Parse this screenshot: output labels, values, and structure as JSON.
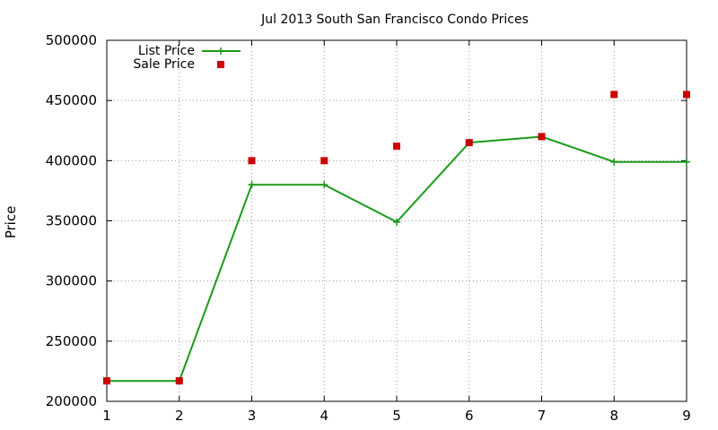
{
  "chart_data": {
    "type": "line",
    "title": "Jul 2013 South San Francisco Condo Prices",
    "xlabel": "",
    "ylabel": "Price",
    "xlim": [
      1,
      9
    ],
    "ylim": [
      200000,
      500000
    ],
    "xticks": [
      "1",
      "2",
      "3",
      "4",
      "5",
      "6",
      "7",
      "8",
      "9"
    ],
    "yticks": [
      "200000",
      "250000",
      "300000",
      "350000",
      "400000",
      "450000",
      "500000"
    ],
    "grid": true,
    "legend_position": "top-left",
    "x": [
      1,
      2,
      3,
      4,
      5,
      6,
      7,
      8,
      9
    ],
    "series": [
      {
        "name": "List Price",
        "style": "line+cross",
        "color": "#1a9a1a",
        "values": [
          217000,
          217000,
          380000,
          380000,
          349000,
          415000,
          420000,
          399000,
          399000
        ]
      },
      {
        "name": "Sale Price",
        "style": "square",
        "color": "#cc0000",
        "values": [
          217000,
          217000,
          400000,
          400000,
          412000,
          415000,
          420000,
          455000,
          455000
        ]
      }
    ]
  }
}
